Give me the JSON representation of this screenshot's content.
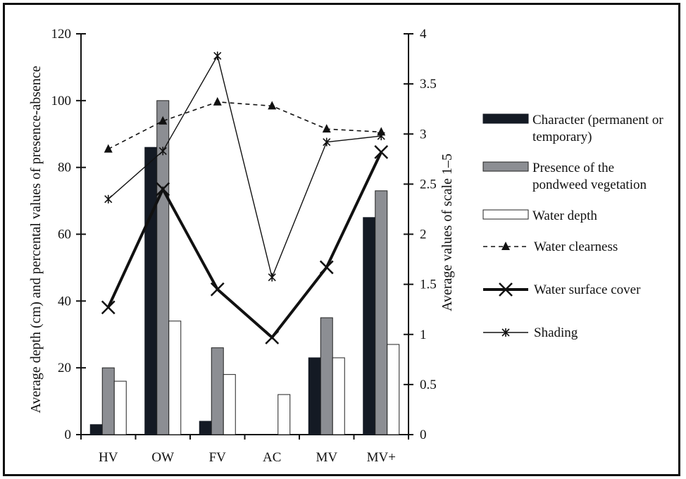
{
  "chart_data": {
    "type": "bar",
    "categories": [
      "HV",
      "OW",
      "FV",
      "AC",
      "MV",
      "MV+"
    ],
    "left_axis": {
      "label": "Average depth (cm) and percental values of presence-absence",
      "ylim": [
        0,
        120
      ],
      "ticks": [
        "0",
        "20",
        "40",
        "60",
        "80",
        "100",
        "120"
      ]
    },
    "right_axis": {
      "label": "Average values of scale 1–5",
      "ylim": [
        0,
        4
      ],
      "ticks": [
        "0",
        "0.5",
        "1",
        "1.5",
        "2",
        "2.5",
        "3",
        "3.5",
        "4"
      ]
    },
    "bar_series": [
      {
        "name": "Character (permanent or temporary)",
        "legend_lines": [
          "Character (permanent or",
          "temporary)"
        ],
        "color": "#141a24",
        "stroke": "#141a24",
        "values": [
          3,
          86,
          4,
          0,
          23,
          65
        ]
      },
      {
        "name": "Presence of the pondweed vegetation",
        "legend_lines": [
          "Presence of the",
          "pondweed vegetation"
        ],
        "color": "#8c8e93",
        "stroke": "#222222",
        "values": [
          20,
          100,
          26,
          0,
          35,
          73
        ]
      },
      {
        "name": "Water depth",
        "legend_lines": [
          "Water depth"
        ],
        "color": "#ffffff",
        "stroke": "#222222",
        "values": [
          16,
          34,
          18,
          12,
          23,
          27
        ]
      }
    ],
    "line_series": [
      {
        "name": "Water clearness",
        "style": "dashed",
        "marker": "triangle",
        "axis": "right",
        "values": [
          2.85,
          3.13,
          3.32,
          3.28,
          3.05,
          3.02
        ]
      },
      {
        "name": "Water surface cover",
        "style": "thick",
        "marker": "x",
        "axis": "right",
        "values": [
          1.27,
          2.45,
          1.45,
          0.97,
          1.67,
          2.82
        ]
      },
      {
        "name": "Shading",
        "style": "thin",
        "marker": "asterisk",
        "axis": "right",
        "values": [
          2.35,
          2.83,
          3.78,
          1.57,
          2.92,
          2.98
        ]
      }
    ],
    "legend_position": "right",
    "grid": false
  }
}
